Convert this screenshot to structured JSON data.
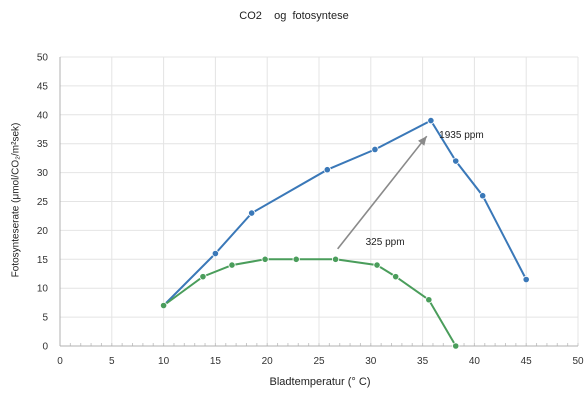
{
  "chart_data": {
    "type": "line",
    "title": "CO2    og  fotosyntese",
    "xlabel": "Bladtemperatur (° C)",
    "ylabel": "Fotosynteserate   (μmol/CO₂/m²sek)",
    "xlim": [
      0,
      50
    ],
    "ylim": [
      0,
      50
    ],
    "x_ticks": [
      "0",
      "5",
      "10",
      "15",
      "20",
      "25",
      "30",
      "35",
      "40",
      "45",
      "50"
    ],
    "y_ticks": [
      "0",
      "5",
      "10",
      "15",
      "20",
      "25",
      "30",
      "35",
      "40",
      "45",
      "50"
    ],
    "grid": true,
    "series": [
      {
        "name": "1935 ppm",
        "color": "#3a78b8",
        "x": [
          10,
          15,
          18.5,
          25.8,
          30.4,
          35.8,
          38.2,
          40.8,
          45
        ],
        "y": [
          7,
          16,
          23,
          30.5,
          34,
          39,
          32,
          26,
          11.5
        ]
      },
      {
        "name": "325 ppm",
        "color": "#4a9d5b",
        "x": [
          10,
          13.8,
          16.6,
          19.8,
          22.8,
          26.6,
          30.6,
          32.4,
          35.6,
          38.2
        ],
        "y": [
          7,
          12,
          14,
          15,
          15,
          15,
          14,
          12,
          8,
          0
        ]
      }
    ],
    "annotations": [
      {
        "text": "1935 ppm",
        "x": 36.6,
        "y": 36
      },
      {
        "text": "325  ppm",
        "x": 29.5,
        "y": 17.5
      }
    ],
    "arrow": {
      "from": [
        26.8,
        16.8
      ],
      "to": [
        35.4,
        36.3
      ],
      "color": "#8a8a8a"
    }
  }
}
